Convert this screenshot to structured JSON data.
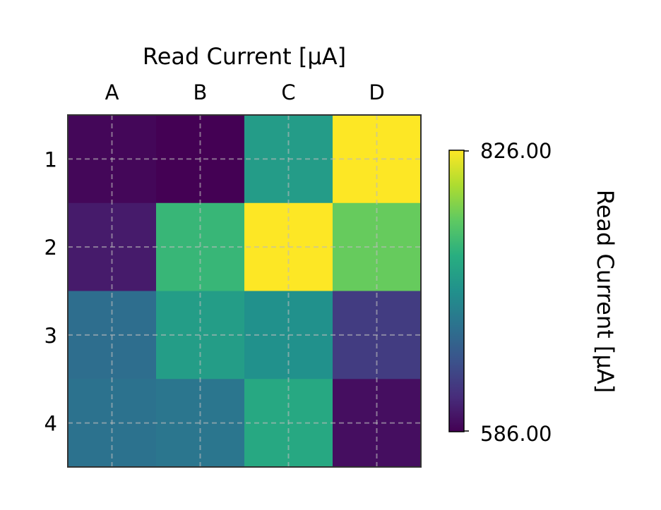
{
  "chart_data": {
    "type": "heatmap",
    "title": "Read Current [μA]",
    "x_categories": [
      "A",
      "B",
      "C",
      "D"
    ],
    "y_categories": [
      "1",
      "2",
      "3",
      "4"
    ],
    "values": [
      [
        590,
        586,
        717,
        826
      ],
      [
        604,
        745,
        826,
        769
      ],
      [
        672,
        718,
        706,
        628
      ],
      [
        676,
        680,
        730,
        595
      ]
    ],
    "colorbar": {
      "label": "Read Current [μA]",
      "min": 586.0,
      "max": 826.0,
      "min_label": "586.00",
      "max_label": "826.00"
    },
    "colormap": "viridis",
    "grid": true
  }
}
